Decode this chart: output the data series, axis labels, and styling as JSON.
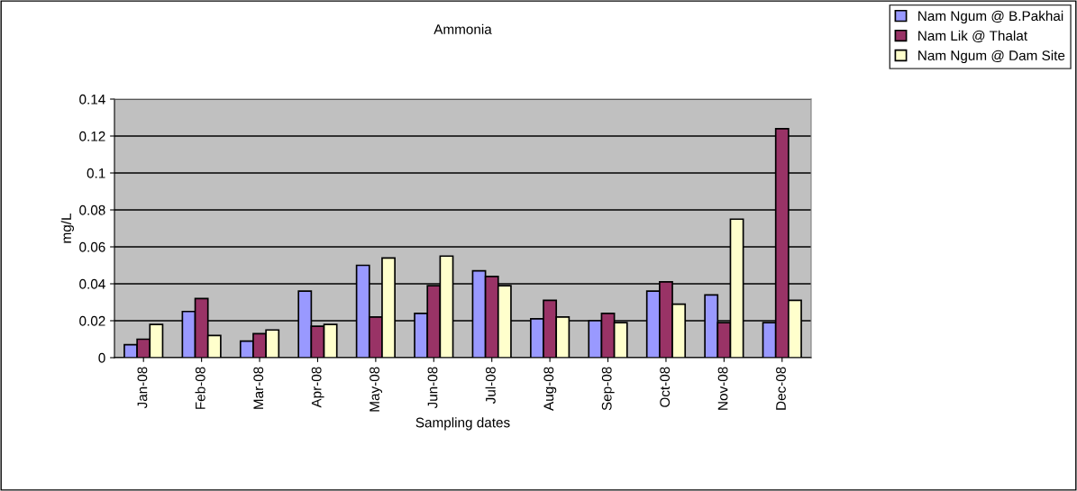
{
  "chart_data": {
    "type": "bar",
    "title": "Ammonia",
    "xlabel": "Sampling dates",
    "ylabel": "mg/L",
    "categories": [
      "Jan-08",
      "Feb-08",
      "Mar-08",
      "Apr-08",
      "May-08",
      "Jun-08",
      "Jul-08",
      "Aug-08",
      "Sep-08",
      "Oct-08",
      "Nov-08",
      "Dec-08"
    ],
    "series": [
      {
        "name": "Nam Ngum @ B.Pakhai",
        "color": "#9999ff",
        "values": [
          0.007,
          0.025,
          0.009,
          0.036,
          0.05,
          0.024,
          0.047,
          0.021,
          0.02,
          0.036,
          0.034,
          0.019
        ]
      },
      {
        "name": "Nam Lik @ Thalat",
        "color": "#993366",
        "values": [
          0.01,
          0.032,
          0.013,
          0.017,
          0.022,
          0.039,
          0.044,
          0.031,
          0.024,
          0.041,
          0.019,
          0.124
        ]
      },
      {
        "name": "Nam Ngum @ Dam Site",
        "color": "#ffffcc",
        "values": [
          0.018,
          0.012,
          0.015,
          0.018,
          0.054,
          0.055,
          0.039,
          0.022,
          0.019,
          0.029,
          0.075,
          0.031
        ]
      }
    ],
    "ylim": [
      0,
      0.14
    ],
    "yticks": [
      0,
      0.02,
      0.04,
      0.06,
      0.08,
      0.1,
      0.12,
      0.14
    ],
    "grid": "y",
    "legend": "top right"
  }
}
